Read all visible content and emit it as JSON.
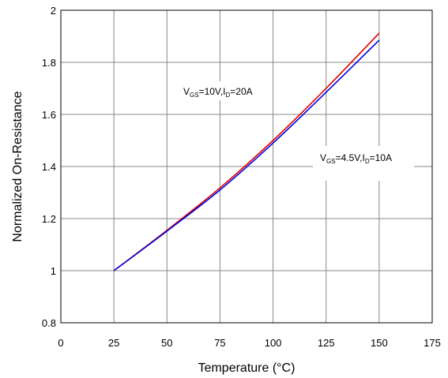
{
  "chart_data": {
    "type": "line",
    "xlabel": "Temperature (°C)",
    "ylabel": "Normalized On-Resistance",
    "xlim": [
      0,
      175
    ],
    "ylim": [
      0.8,
      2
    ],
    "xticks": [
      "0",
      "25",
      "50",
      "75",
      "100",
      "125",
      "150",
      "175"
    ],
    "yticks": [
      "0.8",
      "1",
      "1.2",
      "1.4",
      "1.6",
      "1.8",
      "2"
    ],
    "grid": true,
    "annotations": [
      {
        "main": "V",
        "sub": "GS",
        "mid": "=10V,I",
        "sub2": "D",
        "end": "=20A"
      },
      {
        "main": "V",
        "sub": "GS",
        "mid": "=4.5V,I",
        "sub2": "D",
        "end": "=10A"
      }
    ],
    "series": [
      {
        "color": "#e00000",
        "x": [
          25,
          50,
          75,
          100,
          125,
          150
        ],
        "y": [
          1.0,
          1.155,
          1.318,
          1.5,
          1.7,
          1.912
        ]
      },
      {
        "color": "#0000e0",
        "x": [
          25,
          50,
          75,
          100,
          125,
          150
        ],
        "y": [
          1.0,
          1.152,
          1.31,
          1.49,
          1.685,
          1.885
        ]
      }
    ]
  }
}
